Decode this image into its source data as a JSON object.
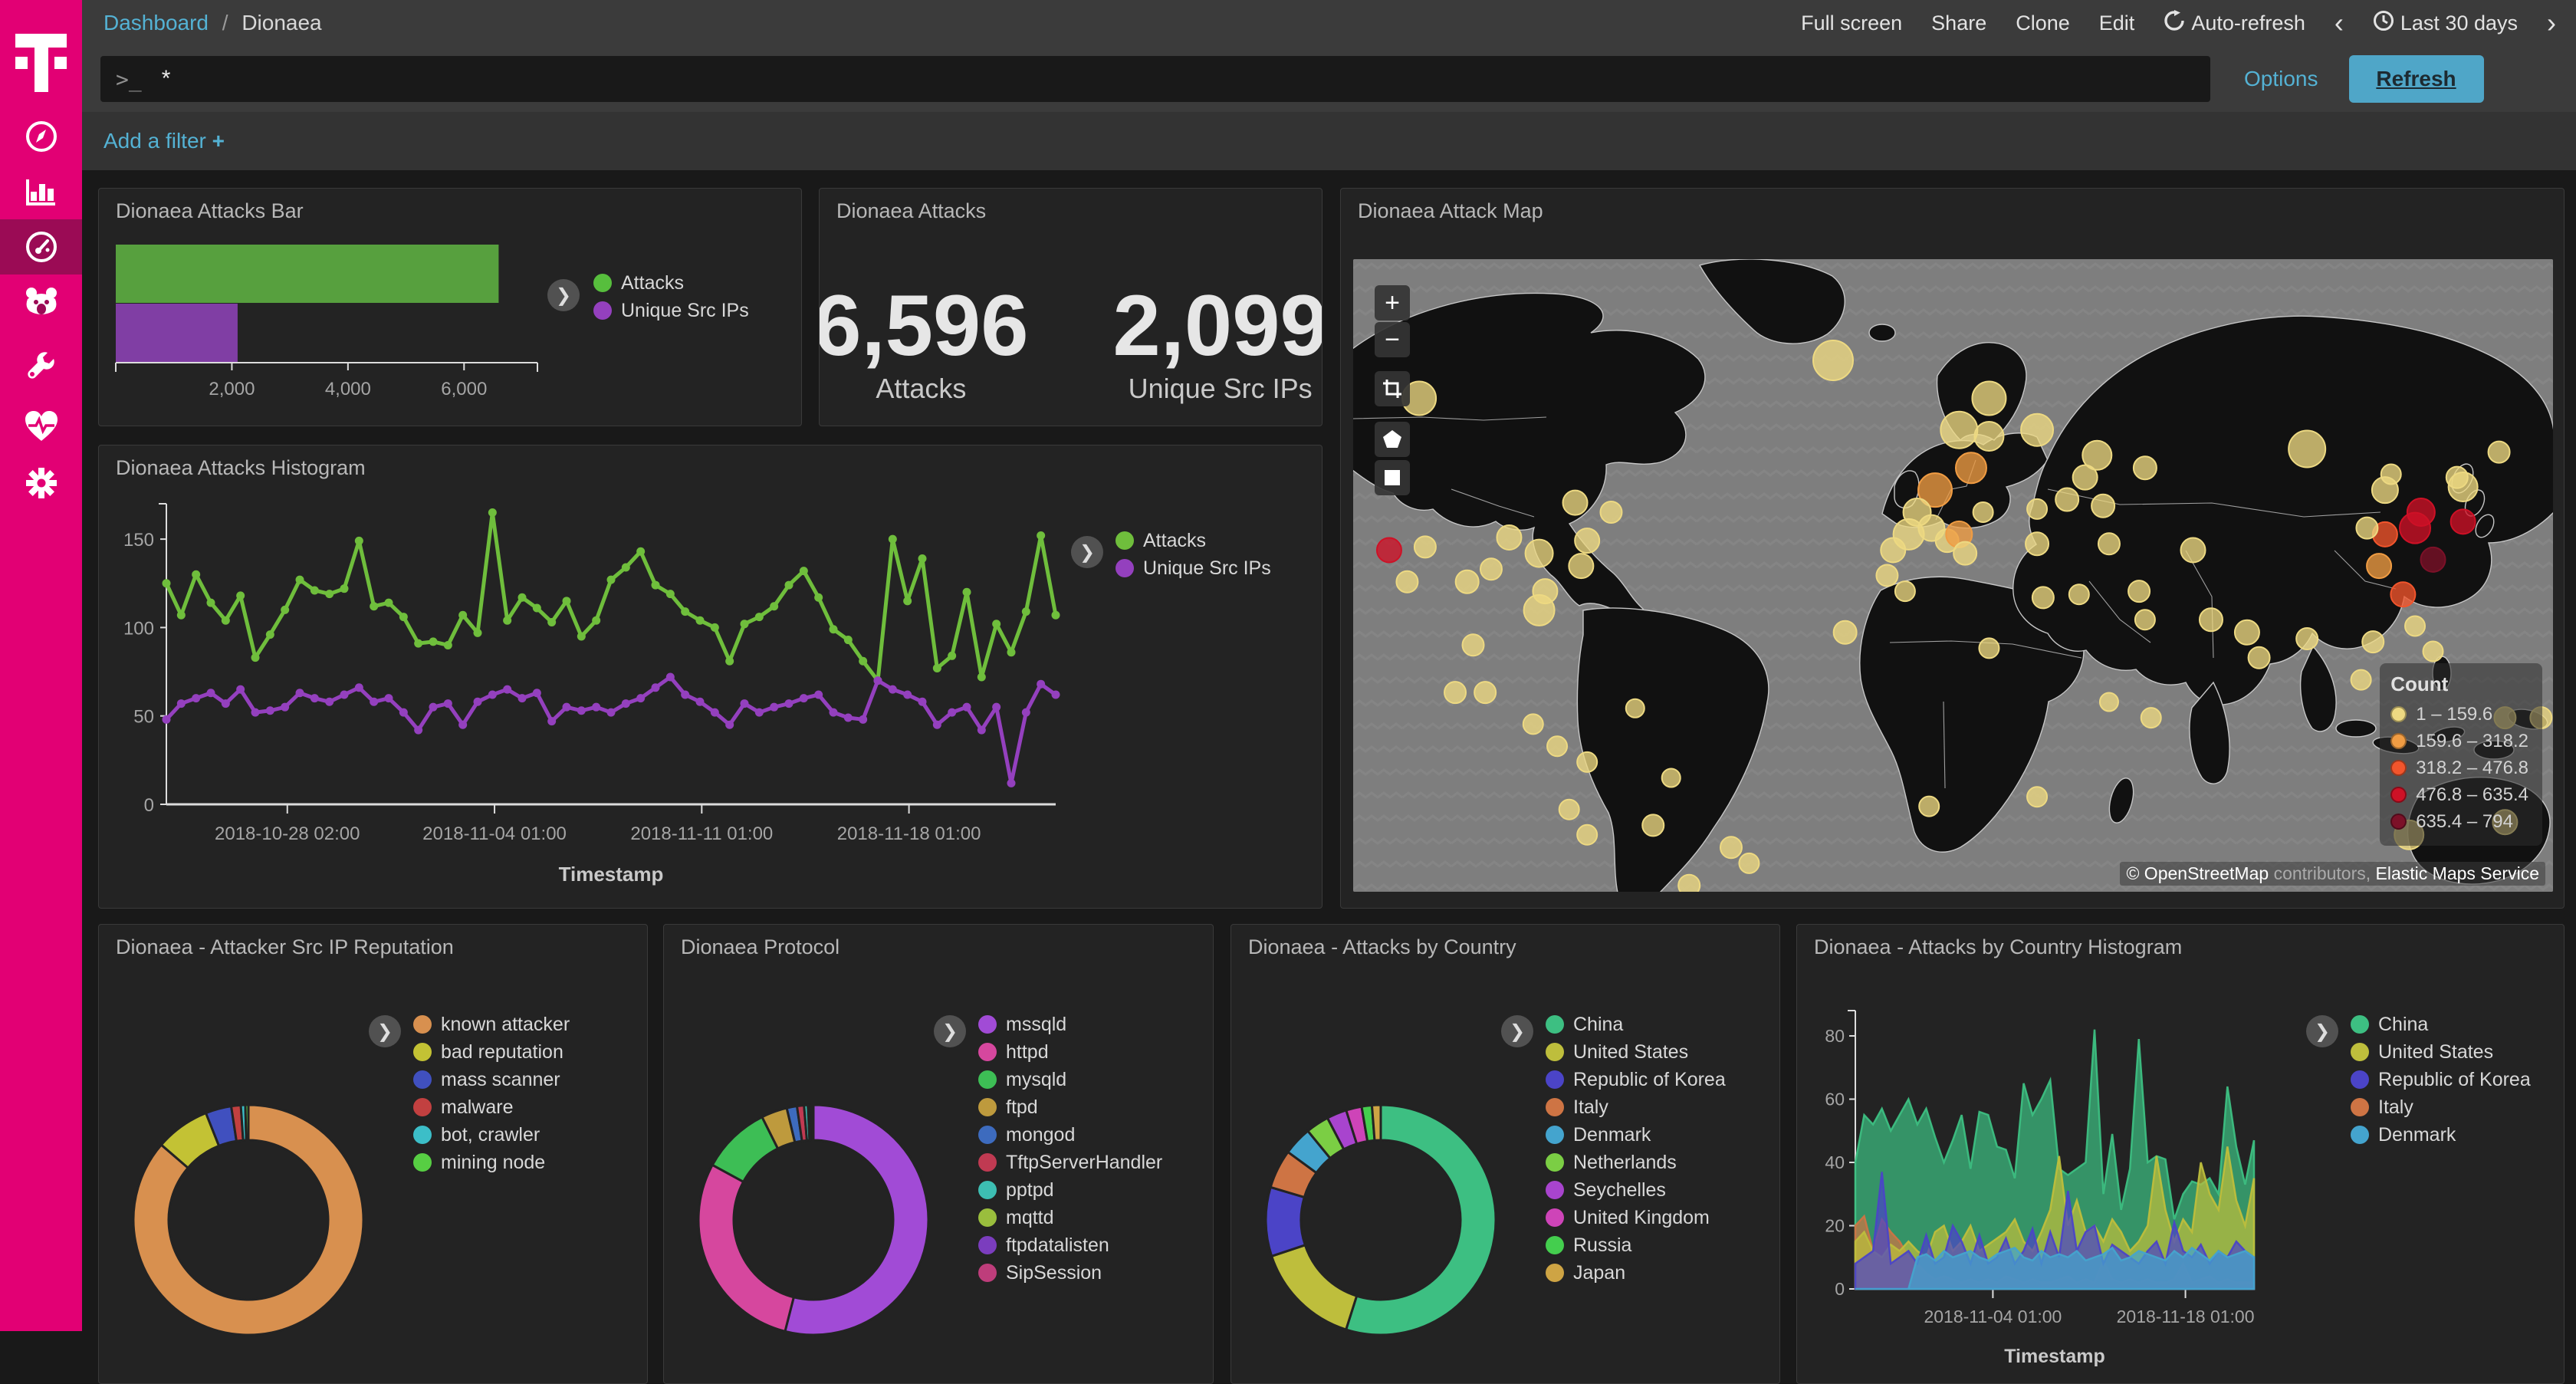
{
  "sidebar": {
    "items": [
      {
        "id": "discover"
      },
      {
        "id": "visualize"
      },
      {
        "id": "dashboard"
      },
      {
        "id": "timelion"
      },
      {
        "id": "dev-tools"
      },
      {
        "id": "monitoring"
      },
      {
        "id": "management"
      }
    ],
    "active": "dashboard"
  },
  "topbar": {
    "breadcrumb": {
      "parent": "Dashboard",
      "separator": "/",
      "current": "Dionaea"
    },
    "actions": [
      "Full screen",
      "Share",
      "Clone",
      "Edit"
    ],
    "auto_refresh": "Auto-refresh",
    "prev": "‹",
    "next": "›",
    "time_range": "Last 30 days"
  },
  "querybar": {
    "prompt": ">_",
    "value": "*",
    "options_label": "Options",
    "refresh_label": "Refresh"
  },
  "filterbar": {
    "add_filter_label": "Add a filter",
    "plus": "+"
  },
  "panels": {
    "bar_title": "Dionaea Attacks Bar",
    "metric_title": "Dionaea Attacks",
    "map_title": "Dionaea Attack Map",
    "histogram_title": "Dionaea Attacks Histogram",
    "reputation_title": "Dionaea - Attacker Src IP Reputation",
    "protocol_title": "Dionaea Protocol",
    "country_title": "Dionaea - Attacks by Country",
    "country_histogram_title": "Dionaea - Attacks by Country Histogram"
  },
  "chart_data": [
    {
      "id": "attacks-bar",
      "type": "bar",
      "orientation": "horizontal",
      "categories": [
        "Attacks",
        "Unique Src IPs"
      ],
      "values": [
        6596,
        2099
      ],
      "colors": [
        "#57A03E",
        "#803EA4"
      ],
      "xlim": [
        0,
        7000
      ],
      "xticks": [
        2000,
        4000,
        6000
      ],
      "tick_labels": [
        "2,000",
        "4,000",
        "6,000"
      ],
      "legend": [
        {
          "label": "Attacks",
          "color": "#57BE3D"
        },
        {
          "label": "Unique Src IPs",
          "color": "#9440BE"
        }
      ]
    },
    {
      "id": "attacks-metric",
      "type": "metric",
      "metrics": [
        {
          "value": "6,596",
          "label": "Attacks"
        },
        {
          "value": "2,099",
          "label": "Unique Src IPs"
        }
      ]
    },
    {
      "id": "attacks-histogram",
      "type": "line",
      "title": "Dionaea Attacks Histogram",
      "xlabel": "Timestamp",
      "ylim": [
        0,
        170
      ],
      "yticks": [
        0,
        50,
        100,
        150
      ],
      "xticks": [
        {
          "label": "2018-10-28 02:00",
          "f": 0.136
        },
        {
          "label": "2018-11-04 01:00",
          "f": 0.369
        },
        {
          "label": "2018-11-11 01:00",
          "f": 0.602
        },
        {
          "label": "2018-11-18 01:00",
          "f": 0.835
        }
      ],
      "series": [
        {
          "name": "Attacks",
          "color": "#6FBE3C",
          "values": [
            125,
            107,
            130,
            114,
            104,
            118,
            83,
            96,
            110,
            127,
            121,
            119,
            122,
            149,
            112,
            114,
            106,
            91,
            92,
            90,
            107,
            97,
            165,
            104,
            117,
            111,
            103,
            115,
            95,
            104,
            127,
            134,
            143,
            124,
            119,
            109,
            104,
            100,
            81,
            102,
            106,
            112,
            124,
            132,
            117,
            99,
            93,
            81,
            70,
            150,
            115,
            139,
            77,
            84,
            120,
            72,
            102,
            86,
            109,
            152,
            107
          ]
        },
        {
          "name": "Unique Src IPs",
          "color": "#9440BE",
          "values": [
            48,
            57,
            60,
            63,
            57,
            65,
            52,
            53,
            55,
            63,
            60,
            58,
            62,
            66,
            58,
            60,
            52,
            42,
            55,
            57,
            45,
            58,
            62,
            65,
            60,
            63,
            47,
            55,
            53,
            55,
            52,
            57,
            60,
            66,
            72,
            62,
            58,
            52,
            45,
            57,
            52,
            55,
            57,
            60,
            62,
            52,
            49,
            48,
            70,
            65,
            62,
            58,
            45,
            52,
            55,
            42,
            55,
            12,
            52,
            68,
            62
          ]
        }
      ]
    },
    {
      "id": "attack-map",
      "type": "map",
      "legend_title": "Count",
      "buckets": [
        {
          "label": "1 – 159.6",
          "color": "#EDD982"
        },
        {
          "label": "159.6 – 318.2",
          "color": "#F09C43"
        },
        {
          "label": "318.2 – 476.8",
          "color": "#F2552C"
        },
        {
          "label": "476.8 – 635.4",
          "color": "#CE1126"
        },
        {
          "label": "635.4 – 794",
          "color": "#7C1128"
        }
      ],
      "attribution": {
        "p1": "© OpenStreetMap",
        "p2": " contributors, ",
        "p3": "Elastic Maps Service"
      },
      "points": [
        [
          5.5,
          22,
          22,
          0
        ],
        [
          40,
          16,
          26,
          0
        ],
        [
          53,
          22,
          22,
          0
        ],
        [
          50.5,
          27,
          24,
          0
        ],
        [
          53,
          28,
          19,
          0
        ],
        [
          57,
          27,
          21,
          0
        ],
        [
          51.5,
          33,
          20,
          1
        ],
        [
          48.5,
          36.5,
          22,
          1
        ],
        [
          47,
          40,
          18,
          0
        ],
        [
          46.3,
          43.5,
          20,
          0
        ],
        [
          48.2,
          42.5,
          17,
          0
        ],
        [
          49.5,
          44.5,
          15,
          0
        ],
        [
          62,
          31,
          19,
          0
        ],
        [
          61,
          34.5,
          16,
          0
        ],
        [
          66,
          33,
          15,
          0
        ],
        [
          79.5,
          30,
          24,
          0
        ],
        [
          86,
          36.5,
          17,
          0
        ],
        [
          92.5,
          36,
          19,
          0
        ],
        [
          59.5,
          38,
          15,
          0
        ],
        [
          62.5,
          39,
          15,
          0
        ],
        [
          57,
          39.5,
          13,
          0
        ],
        [
          52.5,
          40,
          13,
          0
        ],
        [
          50.5,
          43.5,
          17,
          1
        ],
        [
          51,
          46.5,
          15,
          0
        ],
        [
          57,
          45,
          15,
          0
        ],
        [
          63,
          45,
          14,
          0
        ],
        [
          70,
          46,
          16,
          0
        ],
        [
          45,
          46,
          16,
          0
        ],
        [
          44.5,
          50,
          14,
          0
        ],
        [
          46,
          52.5,
          13,
          0
        ],
        [
          41,
          59,
          15,
          0
        ],
        [
          53,
          61.5,
          13,
          0
        ],
        [
          57.5,
          53.5,
          14,
          0
        ],
        [
          60.5,
          53,
          13,
          0
        ],
        [
          65.5,
          52.5,
          14,
          0
        ],
        [
          66,
          57,
          13,
          0
        ],
        [
          71.5,
          57,
          15,
          0
        ],
        [
          74.5,
          59,
          16,
          0
        ],
        [
          75.5,
          63,
          14,
          0
        ],
        [
          79.5,
          60,
          14,
          0
        ],
        [
          85,
          60.5,
          14,
          0
        ],
        [
          87.5,
          53,
          16,
          2
        ],
        [
          85.5,
          48.5,
          16,
          1
        ],
        [
          90,
          47.5,
          16,
          4
        ],
        [
          89,
          40,
          18,
          3
        ],
        [
          92.5,
          41.5,
          16,
          3
        ],
        [
          88.5,
          42.5,
          20,
          3
        ],
        [
          86,
          43.5,
          16,
          2
        ],
        [
          84.5,
          42.5,
          14,
          0
        ],
        [
          92,
          34.5,
          14,
          0
        ],
        [
          95.5,
          30.5,
          14,
          0
        ],
        [
          86.5,
          34,
          13,
          0
        ],
        [
          3,
          46,
          16,
          3
        ],
        [
          4.5,
          51,
          14,
          0
        ],
        [
          6,
          45.5,
          14,
          0
        ],
        [
          9.5,
          51,
          15,
          0
        ],
        [
          13,
          44,
          16,
          0
        ],
        [
          15.5,
          46.5,
          18,
          0
        ],
        [
          19,
          48.5,
          16,
          0
        ],
        [
          16,
          52.5,
          16,
          0
        ],
        [
          11.5,
          49,
          14,
          0
        ],
        [
          15.5,
          55.5,
          20,
          0
        ],
        [
          18.5,
          38.5,
          16,
          0
        ],
        [
          19.5,
          44.5,
          16,
          0
        ],
        [
          21.5,
          40,
          14,
          0
        ],
        [
          10,
          61,
          14,
          0
        ],
        [
          8.5,
          68.5,
          14,
          0
        ],
        [
          11,
          68.5,
          14,
          0
        ],
        [
          15,
          73.5,
          13,
          0
        ],
        [
          17,
          77,
          13,
          0
        ],
        [
          19.5,
          79.5,
          13,
          0
        ],
        [
          23.5,
          71,
          12,
          0
        ],
        [
          18,
          87,
          13,
          0
        ],
        [
          19.5,
          91,
          13,
          0
        ],
        [
          25,
          89.5,
          14,
          0
        ],
        [
          26.5,
          82,
          12,
          0
        ],
        [
          31.5,
          93,
          14,
          0
        ],
        [
          33,
          95.5,
          13,
          0
        ],
        [
          28,
          99,
          14,
          0
        ],
        [
          48,
          86.5,
          13,
          0
        ],
        [
          57,
          85,
          13,
          0
        ],
        [
          66.5,
          72.5,
          13,
          0
        ],
        [
          84,
          66.5,
          13,
          0
        ],
        [
          88.5,
          58,
          13,
          0
        ],
        [
          90,
          62,
          13,
          0
        ],
        [
          96,
          72.5,
          14,
          0
        ],
        [
          99,
          72.5,
          14,
          0
        ],
        [
          88,
          91,
          19,
          0
        ],
        [
          96,
          89,
          16,
          0
        ],
        [
          63,
          70,
          12,
          0
        ]
      ]
    },
    {
      "id": "reputation-pie",
      "type": "pie",
      "labels": [
        "known attacker",
        "bad reputation",
        "mass scanner",
        "malware",
        "bot, crawler",
        "mining node"
      ],
      "values": [
        1805,
        160,
        76,
        28,
        13,
        9
      ],
      "colors": [
        "#D8904F",
        "#C3C234",
        "#4050BF",
        "#C24040",
        "#3CBEC8",
        "#57CE43"
      ]
    },
    {
      "id": "protocol-pie",
      "type": "pie",
      "labels": [
        "mssqld",
        "httpd",
        "mysqld",
        "ftpd",
        "mongod",
        "TftpServerHandler",
        "pptpd",
        "mqttd",
        "ftpdatalisten",
        "SipSession"
      ],
      "values": [
        3560,
        1910,
        640,
        240,
        95,
        65,
        35,
        20,
        18,
        13
      ],
      "colors": [
        "#A14BD6",
        "#D6479E",
        "#3DBE55",
        "#BE9A3D",
        "#3D6BBE",
        "#C03A52",
        "#3DBEB2",
        "#9ABE3D",
        "#7B3DBE",
        "#BE3D7B"
      ]
    },
    {
      "id": "country-pie",
      "type": "pie",
      "labels": [
        "China",
        "United States",
        "Republic of Korea",
        "Italy",
        "Denmark",
        "Netherlands",
        "Seychelles",
        "United Kingdom",
        "Russia",
        "Japan"
      ],
      "values": [
        3620,
        990,
        640,
        360,
        265,
        215,
        185,
        145,
        95,
        81
      ],
      "colors": [
        "#3DBF82",
        "#BEBE3C",
        "#4B44C7",
        "#CE7444",
        "#44A4CE",
        "#7BCE44",
        "#A844CE",
        "#CE44B8",
        "#44CE4E",
        "#CEA444"
      ]
    },
    {
      "id": "country-histogram",
      "type": "area",
      "xlabel": "Timestamp",
      "ylim": [
        0,
        88
      ],
      "yticks": [
        0,
        20,
        40,
        60,
        80
      ],
      "xticks": [
        {
          "label": "2018-11-04 01:00",
          "f": 0.345
        },
        {
          "label": "2018-11-18 01:00",
          "f": 0.828
        }
      ],
      "series": [
        {
          "name": "China",
          "color": "#3DBF82",
          "values": [
            40,
            55,
            52,
            57,
            50,
            55,
            60,
            52,
            57,
            48,
            40,
            47,
            55,
            38,
            56,
            55,
            45,
            44,
            35,
            65,
            55,
            60,
            66,
            38,
            36,
            38,
            40,
            82,
            30,
            49,
            25,
            38,
            79,
            40,
            42,
            41,
            22,
            30,
            34,
            33,
            35,
            30,
            64,
            45,
            33,
            47
          ]
        },
        {
          "name": "United States",
          "color": "#BEBE3C",
          "values": [
            15,
            18,
            12,
            10,
            14,
            12,
            15,
            12,
            10,
            18,
            20,
            12,
            15,
            20,
            12,
            14,
            16,
            18,
            22,
            15,
            12,
            18,
            25,
            42,
            20,
            28,
            18,
            20,
            15,
            22,
            18,
            12,
            15,
            20,
            42,
            25,
            15,
            22,
            18,
            40,
            30,
            25,
            45,
            28,
            20,
            35
          ]
        },
        {
          "name": "Republic of Korea",
          "color": "#4B44C7",
          "values": [
            8,
            10,
            12,
            37,
            8,
            10,
            12,
            8,
            17,
            8,
            10,
            20,
            15,
            8,
            17,
            8,
            10,
            16,
            8,
            12,
            19,
            8,
            18,
            10,
            31,
            12,
            18,
            20,
            8,
            14,
            12,
            10,
            8,
            12,
            15,
            8,
            21,
            12,
            10,
            14,
            8,
            12,
            10,
            15,
            12,
            10
          ]
        },
        {
          "name": "Italy",
          "color": "#CE7444",
          "values": [
            20,
            23,
            12,
            22,
            18,
            15,
            10,
            8,
            5,
            3,
            4,
            3,
            2,
            3,
            2,
            3,
            2,
            4,
            3,
            2,
            3,
            2,
            2,
            3,
            4,
            2,
            3,
            2,
            9,
            3,
            2,
            3,
            2,
            3,
            2,
            2,
            3,
            8,
            2,
            3,
            4,
            2,
            3,
            2,
            2,
            2
          ]
        },
        {
          "name": "Denmark",
          "color": "#44A4CE",
          "values": [
            0,
            0,
            0,
            0,
            0,
            0,
            0,
            10,
            11,
            9,
            12,
            10,
            11,
            12,
            10,
            9,
            11,
            12,
            13,
            10,
            9,
            12,
            10,
            11,
            10,
            12,
            9,
            10,
            11,
            13,
            9,
            10,
            12,
            11,
            10,
            9,
            12,
            10,
            13,
            11,
            9,
            12,
            10,
            11,
            12,
            10
          ]
        }
      ]
    }
  ]
}
